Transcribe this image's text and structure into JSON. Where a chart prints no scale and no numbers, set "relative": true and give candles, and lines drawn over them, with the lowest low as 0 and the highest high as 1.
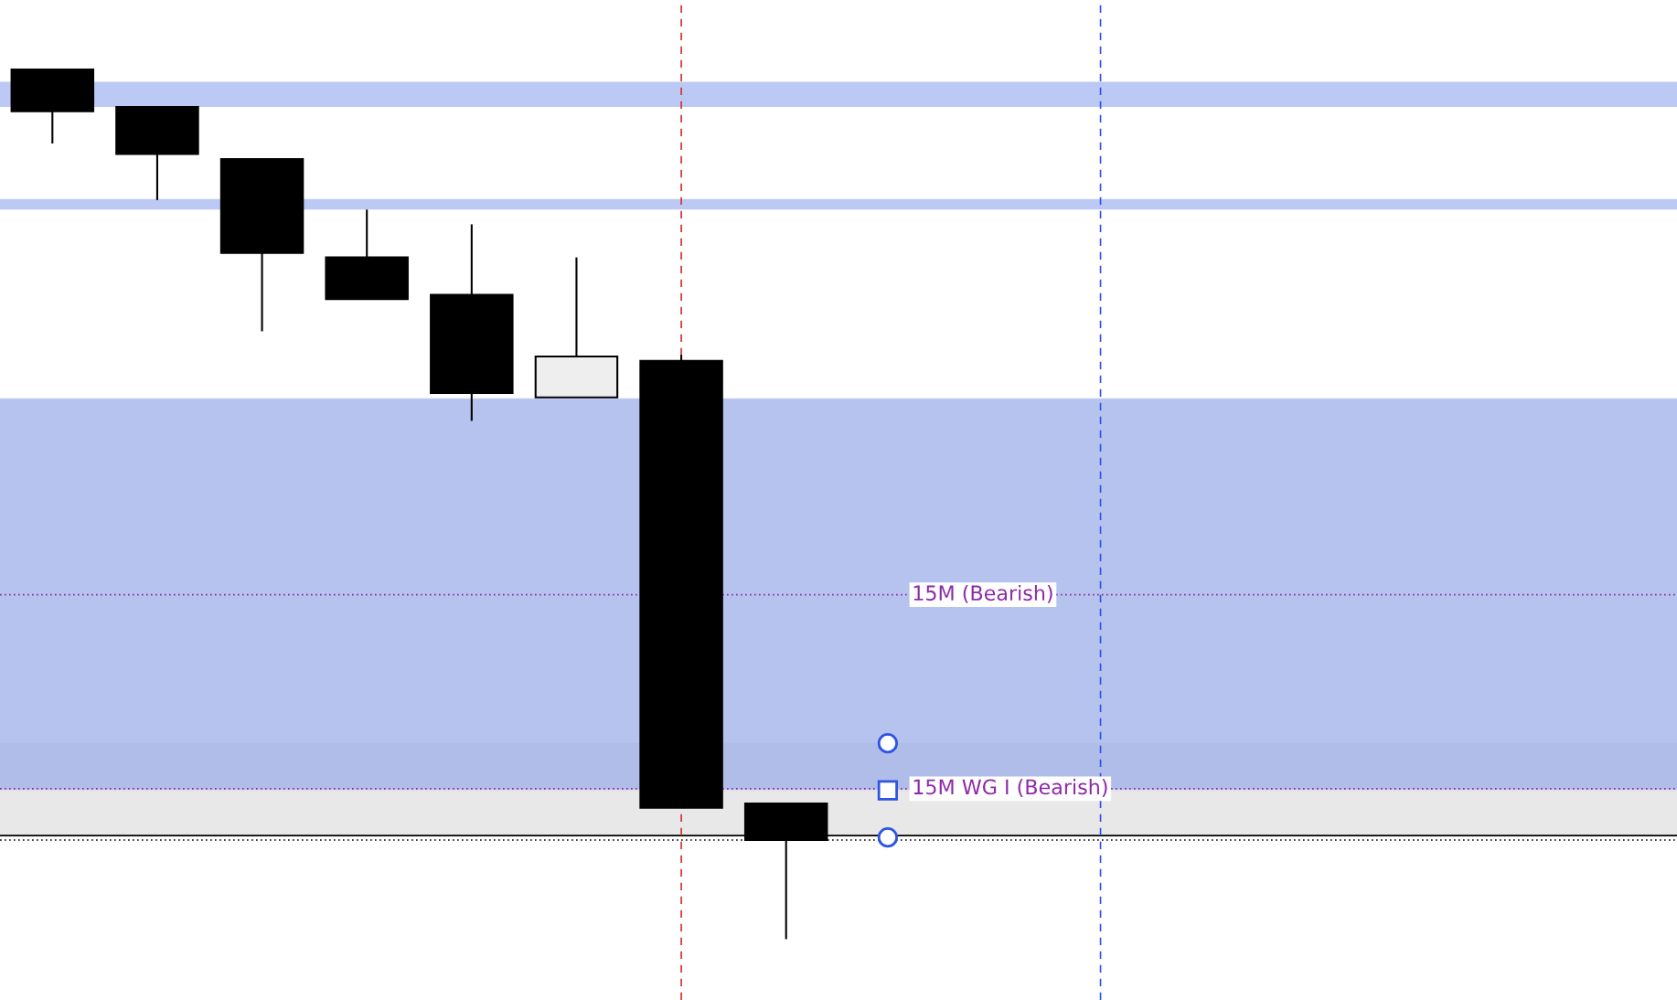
{
  "chart_data": {
    "type": "candlestick",
    "relative": true,
    "categories": [
      null,
      null,
      null,
      null,
      null,
      null,
      null,
      null
    ],
    "ohlc": [
      [
        1.0,
        1.0,
        0.915,
        0.952
      ],
      [
        0.957,
        0.957,
        0.85,
        0.903
      ],
      [
        0.897,
        0.897,
        0.699,
        0.789
      ],
      [
        0.784,
        0.839,
        0.736,
        0.736
      ],
      [
        0.741,
        0.822,
        0.596,
        0.628
      ],
      [
        0.623,
        0.784,
        0.623,
        0.67
      ],
      [
        0.665,
        0.672,
        0.151,
        0.151
      ],
      [
        0.156,
        0.156,
        0.0,
        0.114
      ]
    ],
    "bands": [
      {
        "axis": "y",
        "from": 0.17,
        "to": 0.62,
        "color": "#e6e6e6"
      },
      {
        "axis": "y",
        "from": 0.119,
        "to": 0.226,
        "color": "#d9d9d9"
      },
      {
        "axis": "y",
        "from": 0.957,
        "to": 0.986,
        "color": "#8fa5ee"
      },
      {
        "axis": "y",
        "from": 0.839,
        "to": 0.851,
        "color": "#8fa5ee"
      },
      {
        "axis": "y",
        "from": 0.172,
        "to": 0.622,
        "color": "#8fa5ee"
      }
    ],
    "ref_lines": [
      {
        "axis": "y",
        "value": 0.396,
        "label": "15M (Bearish)",
        "color": "#8e2aa8",
        "line_style": "dotted"
      },
      {
        "axis": "y",
        "value": 0.173,
        "label": "15M WG I (Bearish)",
        "color": "#8e2aa8",
        "line_style": "dotted"
      },
      {
        "axis": "y",
        "value": 0.119,
        "color": "#000000",
        "line_style": "solid"
      },
      {
        "axis": "y",
        "value": 0.114,
        "color": "#000000",
        "line_style": "dotted"
      }
    ]
  }
}
